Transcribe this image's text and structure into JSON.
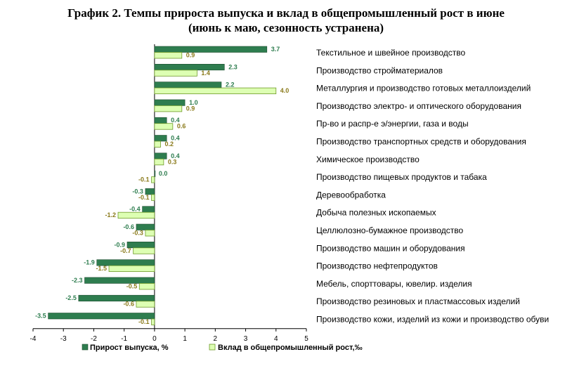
{
  "header": {
    "title_line1": "График 2. Темпы прироста выпуска и вклад в общепромышленный рост в июне",
    "title_line2": "(июнь к маю, сезонность устранена)"
  },
  "colors": {
    "series_a_fill": "#2e7d4f",
    "series_a_label": "#2e7d4f",
    "series_b_fill": "#ddffb3",
    "series_b_stroke": "#6f9a2a",
    "series_b_label": "#8a7a1a"
  },
  "chart_data": {
    "type": "bar",
    "orientation": "horizontal",
    "categories": [
      "Текстильное и швейное производство",
      "Производство стройматериалов",
      "Металлургия и производство готовых металлоизделий",
      "Производство электро- и оптического оборудования",
      "Пр-во и распр-е э/энергии, газа и воды",
      "Производство транспортных  средств и оборудования",
      "Химическое производство",
      "Производство пищевых продуктов и табака",
      "Деревообработка",
      "Добыча полезных ископаемых",
      "Целлюлозно-бумажное  производство",
      "Производство машин и оборудования",
      "Производство нефтепродуктов",
      "Мебель, спорттовары,  ювелир.  изделия",
      "Производство резиновых и пластмассовых  изделий",
      "Производство кожи, изделий из кожи и производство обуви"
    ],
    "series": [
      {
        "name": "Прирост выпуска, %",
        "values": [
          3.7,
          2.3,
          2.2,
          1.0,
          0.4,
          0.4,
          0.4,
          0.0,
          -0.3,
          -0.4,
          -0.6,
          -0.9,
          -1.9,
          -2.3,
          -2.5,
          -3.5
        ],
        "labels": [
          "3.7",
          "2.3",
          "2.2",
          "1.0",
          "0.4",
          "0.4",
          "0.4",
          "0.0",
          "-0.3",
          "-0.4",
          "-0.6",
          "-0.9",
          "-1.9",
          "-2.3",
          "-2.5",
          "-3.5"
        ]
      },
      {
        "name": "Вклад в общепромышленный рост,‰",
        "values": [
          0.9,
          1.4,
          4.0,
          0.9,
          0.6,
          0.2,
          0.3,
          -0.1,
          -0.1,
          -1.2,
          -0.3,
          -0.7,
          -1.5,
          -0.5,
          -0.6,
          -0.1
        ],
        "labels": [
          "0.9",
          "1.4",
          "4.0",
          "0.9",
          "0.6",
          "0.2",
          "0.3",
          "-0.1",
          "-0.1",
          "-1.2",
          "-0.3",
          "-0.7",
          "-1.5",
          "-0.5",
          "-0.6",
          "-0.1"
        ]
      }
    ],
    "xlim": [
      -4,
      5
    ],
    "xticks": [
      "-4",
      "-3",
      "-2",
      "-1",
      "0",
      "1",
      "2",
      "3",
      "4",
      "5"
    ],
    "legend_position": "bottom"
  }
}
